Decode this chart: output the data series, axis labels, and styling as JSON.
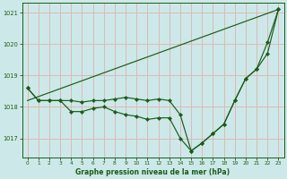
{
  "title": "Graphe pression niveau de la mer (hPa)",
  "bg_color": "#cde8e8",
  "grid_color": "#ddb8b8",
  "line_color": "#1a5c1a",
  "xlim": [
    -0.5,
    23.5
  ],
  "ylim": [
    1016.4,
    1021.3
  ],
  "yticks": [
    1017,
    1018,
    1019,
    1020,
    1021
  ],
  "xticks": [
    0,
    1,
    2,
    3,
    4,
    5,
    6,
    7,
    8,
    9,
    10,
    11,
    12,
    13,
    14,
    15,
    16,
    17,
    18,
    19,
    20,
    21,
    22,
    23
  ],
  "series1": {
    "x": [
      0,
      23
    ],
    "y": [
      1018.2,
      1021.1
    ]
  },
  "series2": {
    "x": [
      0,
      1,
      2,
      3,
      4,
      5,
      6,
      7,
      8,
      9,
      10,
      11,
      12,
      13,
      14,
      15,
      16,
      17,
      18,
      19,
      20,
      21,
      22,
      23
    ],
    "y": [
      1018.6,
      1018.2,
      1018.2,
      1018.2,
      1018.2,
      1018.15,
      1018.2,
      1018.2,
      1018.25,
      1018.3,
      1018.25,
      1018.2,
      1018.25,
      1018.2,
      1017.75,
      1016.6,
      1016.85,
      1017.15,
      1017.45,
      1018.2,
      1018.9,
      1019.2,
      1020.05,
      1021.1
    ]
  },
  "series3": {
    "x": [
      0,
      1,
      2,
      3,
      4,
      5,
      6,
      7,
      8,
      9,
      10,
      11,
      12,
      13,
      14,
      15,
      16,
      17,
      18,
      19,
      20,
      21,
      22,
      23
    ],
    "y": [
      1018.6,
      1018.2,
      1018.2,
      1018.2,
      1017.85,
      1017.85,
      1017.95,
      1018.0,
      1017.85,
      1017.75,
      1017.7,
      1017.6,
      1017.65,
      1017.65,
      1017.0,
      1016.6,
      1016.85,
      1017.15,
      1017.45,
      1018.2,
      1018.9,
      1019.2,
      1019.7,
      1021.1
    ]
  }
}
